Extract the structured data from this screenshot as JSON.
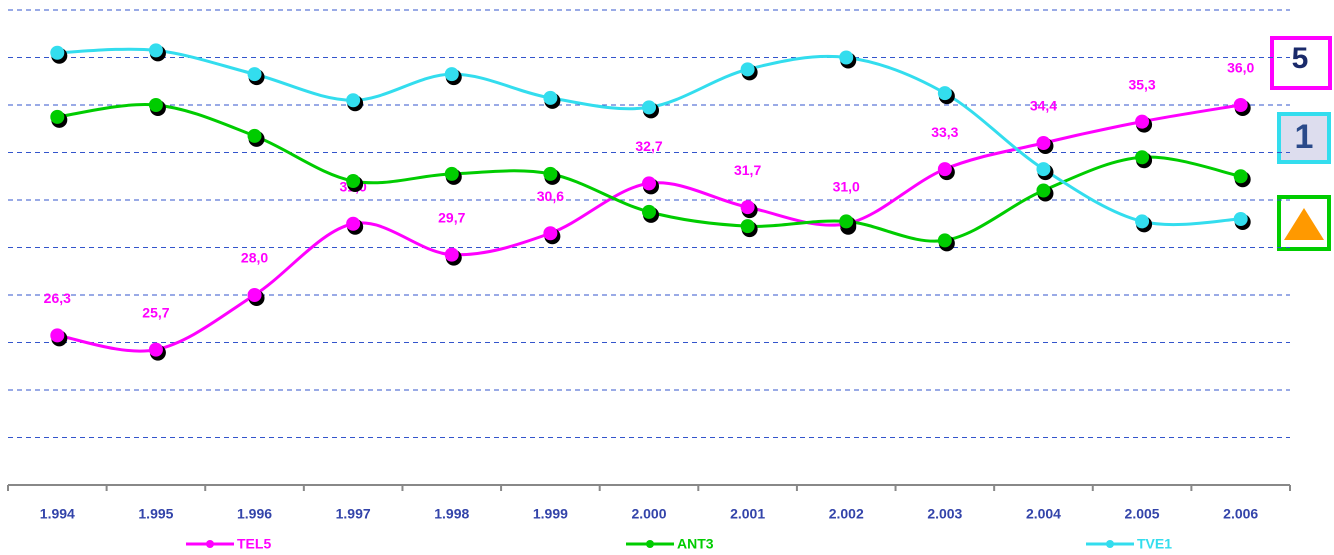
{
  "chart_data": {
    "type": "line",
    "categories": [
      "1.994",
      "1.995",
      "1.996",
      "1.997",
      "1.998",
      "1.999",
      "2.000",
      "2.001",
      "2.002",
      "2.003",
      "2.004",
      "2.005",
      "2.006"
    ],
    "series": [
      {
        "name": "TEL5",
        "color": "#ff00ff",
        "values": [
          26.3,
          25.7,
          28.0,
          31.0,
          29.7,
          30.6,
          32.7,
          31.7,
          31.0,
          33.3,
          34.4,
          35.3,
          36.0
        ],
        "value_labels": [
          "26,3",
          "25,7",
          "28,0",
          "31,0",
          "29,7",
          "30,6",
          "32,7",
          "31,7",
          "31,0",
          "33,3",
          "34,4",
          "35,3",
          "36,0"
        ]
      },
      {
        "name": "ANT3",
        "color": "#00cc00",
        "values": [
          35.5,
          36.0,
          34.7,
          32.8,
          33.1,
          33.1,
          31.5,
          30.9,
          31.1,
          30.3,
          32.4,
          33.8,
          33.0
        ]
      },
      {
        "name": "TVE1",
        "color": "#33ddee",
        "values": [
          38.2,
          38.3,
          37.3,
          36.2,
          37.3,
          36.3,
          35.9,
          37.5,
          38.0,
          36.5,
          33.3,
          31.1,
          31.2
        ]
      }
    ],
    "ylim": [
      20,
      40
    ],
    "yticks": [
      22,
      24,
      26,
      28,
      30,
      32,
      34,
      36,
      38,
      40
    ],
    "grid": true
  }
}
